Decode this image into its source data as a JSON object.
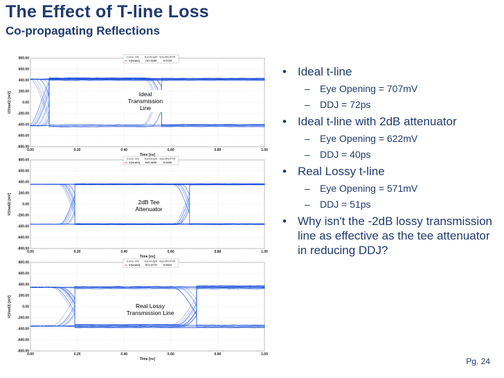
{
  "slide": {
    "title": "The Effect of T-line Loss",
    "subtitle": "Co-propagating Reflections",
    "page_number": "Pg. 24"
  },
  "legend_headers": [
    "Curve Info",
    "EyeHeight",
    "EyeJitterP2P"
  ],
  "plots": [
    {
      "annotation": [
        "Ideal",
        "Transmission",
        "Line"
      ],
      "ylabel": "V(Vout1) [mV]",
      "xlabel": "Time [ns]",
      "legend_values": [
        "V(Vout1)",
        "707.0433",
        "0.0720"
      ],
      "yticks": [
        "800.00",
        "600.00",
        "400.00",
        "200.00",
        "0.00",
        "-200.00",
        "-400.00",
        "-600.00",
        "-800.00"
      ],
      "xticks": [
        "0.00",
        "0.20",
        "0.40",
        "0.60",
        "0.80",
        "1.00"
      ]
    },
    {
      "annotation": [
        "2dB Tee",
        "Attenuator"
      ],
      "ylabel": "V(Vout2) [mV]",
      "xlabel": "Time [ns]",
      "legend_values": [
        "V(Vout2)",
        "622.4630",
        "0.0400"
      ],
      "yticks": [
        "800.00",
        "600.00",
        "400.00",
        "200.00",
        "0.00",
        "-200.00",
        "-400.00",
        "-600.00",
        "-800.00"
      ],
      "xticks": [
        "0.00",
        "0.20",
        "0.40",
        "0.60",
        "0.80",
        "1.00"
      ]
    },
    {
      "annotation": [
        "Real Lossy",
        "Transmission Line"
      ],
      "ylabel": "V(Vout3) [mV]",
      "xlabel": "Time [ns]",
      "legend_values": [
        "V(Vout3)",
        "571.0773",
        "0.0510"
      ],
      "yticks": [
        "800.00",
        "600.00",
        "400.00",
        "200.00",
        "0.00",
        "-200.00",
        "-400.00",
        "-600.00",
        "-800.00"
      ],
      "xticks": [
        "0.00",
        "0.20",
        "0.40",
        "0.60",
        "0.80",
        "1.00"
      ]
    }
  ],
  "bullets": [
    {
      "text": "Ideal t-line",
      "sub": [
        "Eye Opening = 707mV",
        "DDJ = 72ps"
      ]
    },
    {
      "text": "Ideal t-line with 2dB attenuator",
      "sub": [
        "Eye Opening = 622mV",
        "DDJ = 40ps"
      ]
    },
    {
      "text": "Real Lossy t-line",
      "sub": [
        "Eye Opening = 571mV",
        "DDJ = 51ps"
      ]
    },
    {
      "text": "Why isn't the -2dB lossy transmission line as effective as the tee attenuator in reducing DDJ?",
      "sub": []
    }
  ],
  "chart_data": [
    {
      "type": "line",
      "xlabel": "Time [ns]",
      "ylabel": "V(Vout1) [mV]",
      "xlim": [
        0,
        1
      ],
      "ylim": [
        -800,
        800
      ],
      "series": [
        {
          "name": "V(Vout1)",
          "eye_height_mV": 707.0433,
          "eye_jitter_p2p_ns": 0.072
        }
      ],
      "high_level": 420,
      "low_level": -420,
      "spread": 26,
      "crossings": [
        0.08,
        0.56
      ],
      "transition_ns": 0.11,
      "color": "#1A4ED8"
    },
    {
      "type": "line",
      "xlabel": "Time [ns]",
      "ylabel": "V(Vout2) [mV]",
      "xlim": [
        0,
        1
      ],
      "ylim": [
        -800,
        800
      ],
      "series": [
        {
          "name": "V(Vout2)",
          "eye_height_mV": 622.463,
          "eye_jitter_p2p_ns": 0.04
        }
      ],
      "high_level": 360,
      "low_level": -360,
      "spread": 12,
      "crossings": [
        0.19,
        0.68
      ],
      "transition_ns": 0.1,
      "color": "#1A4ED8"
    },
    {
      "type": "line",
      "xlabel": "Time [ns]",
      "ylabel": "V(Vout3) [mV]",
      "xlim": [
        0,
        1
      ],
      "ylim": [
        -800,
        800
      ],
      "series": [
        {
          "name": "V(Vout3)",
          "eye_height_mV": 571.0773,
          "eye_jitter_p2p_ns": 0.051
        }
      ],
      "high_level": 350,
      "low_level": -350,
      "spread": 30,
      "crossings": [
        0.19,
        0.71
      ],
      "transition_ns": 0.16,
      "color": "#1A4ED8"
    }
  ]
}
